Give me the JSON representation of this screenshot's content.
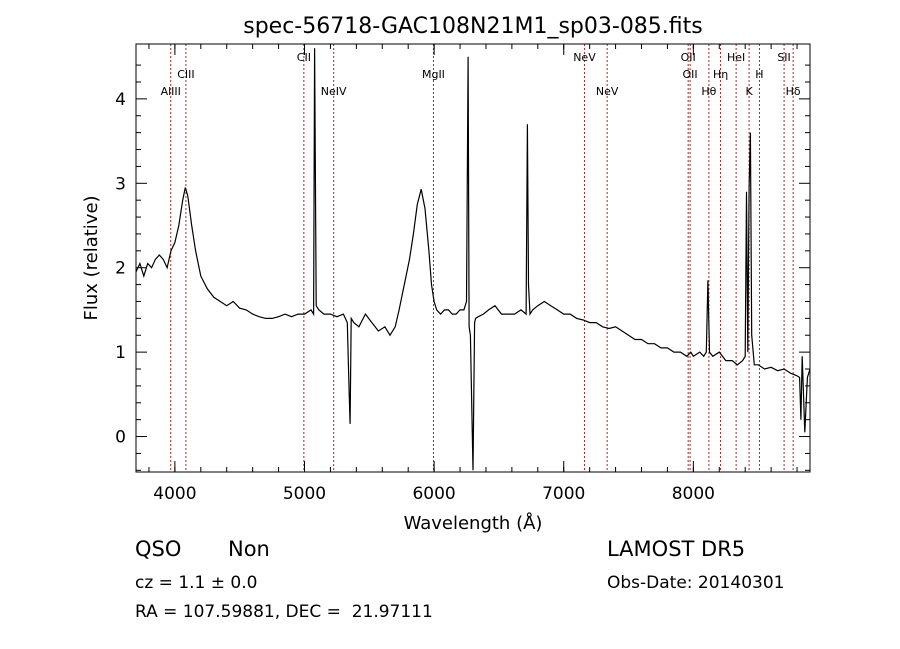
{
  "chart_data": {
    "type": "line",
    "title": "spec-56718-GAC108N21M1_sp03-085.fits",
    "xlabel": "Wavelength (Å)",
    "ylabel": "Flux (relative)",
    "xlim": [
      3700,
      8900
    ],
    "ylim": [
      -0.42,
      4.65
    ],
    "xticks": [
      4000,
      5000,
      6000,
      7000,
      8000
    ],
    "yticks": [
      0,
      1,
      2,
      3,
      4
    ],
    "grid": false,
    "line_color": "#000000",
    "marker_color": "#b22222",
    "series": [
      {
        "x": [
          3700,
          3730,
          3760,
          3790,
          3820,
          3850,
          3880,
          3910,
          3940,
          3970,
          4000,
          4030,
          4060,
          4080,
          4100,
          4130,
          4160,
          4200,
          4250,
          4300,
          4350,
          4400,
          4450,
          4500,
          4550,
          4600,
          4650,
          4700,
          4750,
          4800,
          4850,
          4900,
          4950,
          5000,
          5030,
          5050,
          5070,
          5078,
          5090,
          5110,
          5150,
          5200,
          5250,
          5300,
          5330,
          5345,
          5352,
          5360,
          5380,
          5420,
          5470,
          5520,
          5570,
          5620,
          5660,
          5700,
          5730,
          5770,
          5810,
          5840,
          5870,
          5900,
          5930,
          5960,
          5980,
          6000,
          6020,
          6050,
          6080,
          6110,
          6140,
          6170,
          6200,
          6230,
          6250,
          6262,
          6270,
          6280,
          6300,
          6312,
          6320,
          6340,
          6380,
          6420,
          6470,
          6520,
          6570,
          6620,
          6670,
          6710,
          6720,
          6728,
          6740,
          6760,
          6800,
          6850,
          6900,
          6950,
          7000,
          7050,
          7100,
          7150,
          7200,
          7250,
          7300,
          7350,
          7400,
          7450,
          7500,
          7550,
          7600,
          7650,
          7700,
          7750,
          7800,
          7850,
          7900,
          7950,
          7980,
          8000,
          8050,
          8080,
          8100,
          8112,
          8125,
          8150,
          8200,
          8250,
          8300,
          8340,
          8380,
          8400,
          8410,
          8420,
          8430,
          8440,
          8450,
          8470,
          8500,
          8550,
          8600,
          8650,
          8700,
          8750,
          8800,
          8820,
          8830,
          8840,
          8860,
          8880,
          8900
        ],
        "y": [
          1.95,
          2.05,
          1.9,
          2.05,
          2.0,
          2.1,
          2.15,
          2.1,
          2.0,
          2.2,
          2.3,
          2.5,
          2.8,
          2.95,
          2.85,
          2.5,
          2.2,
          1.9,
          1.75,
          1.65,
          1.6,
          1.55,
          1.6,
          1.52,
          1.5,
          1.45,
          1.42,
          1.4,
          1.4,
          1.42,
          1.45,
          1.42,
          1.45,
          1.45,
          1.48,
          1.5,
          1.45,
          4.6,
          1.55,
          1.5,
          1.45,
          1.45,
          1.42,
          1.45,
          1.35,
          0.5,
          0.15,
          1.4,
          1.35,
          1.3,
          1.45,
          1.35,
          1.25,
          1.3,
          1.2,
          1.3,
          1.5,
          1.8,
          2.1,
          2.4,
          2.75,
          2.93,
          2.7,
          2.2,
          1.8,
          1.6,
          1.5,
          1.45,
          1.5,
          1.5,
          1.45,
          1.45,
          1.5,
          1.5,
          1.6,
          4.5,
          1.3,
          1.2,
          -0.4,
          1.35,
          1.4,
          1.42,
          1.45,
          1.5,
          1.55,
          1.45,
          1.45,
          1.45,
          1.5,
          1.45,
          3.7,
          1.8,
          1.45,
          1.5,
          1.55,
          1.6,
          1.55,
          1.5,
          1.45,
          1.45,
          1.4,
          1.38,
          1.35,
          1.35,
          1.3,
          1.28,
          1.3,
          1.25,
          1.2,
          1.15,
          1.15,
          1.1,
          1.1,
          1.05,
          1.05,
          1.0,
          1.0,
          0.95,
          1.0,
          0.95,
          1.0,
          0.95,
          1.0,
          1.85,
          1.0,
          0.95,
          1.0,
          0.9,
          0.9,
          0.85,
          0.9,
          0.95,
          2.9,
          1.0,
          2.95,
          3.6,
          1.2,
          0.85,
          0.85,
          0.8,
          0.82,
          0.78,
          0.8,
          0.75,
          0.72,
          0.7,
          0.2,
          0.95,
          0.05,
          0.7,
          0.8
        ]
      }
    ],
    "lines": [
      {
        "wl": 3968,
        "label": "AlIII",
        "row": 3
      },
      {
        "wl": 4085,
        "label": "CIII",
        "row": 2
      },
      {
        "wl": 4995,
        "label": "CII",
        "row": 1
      },
      {
        "wl": 5225,
        "label": "NeIV",
        "row": 3
      },
      {
        "wl": 5995,
        "label": "MgII",
        "row": 2
      },
      {
        "wl": 7160,
        "label": "NeV",
        "row": 1
      },
      {
        "wl": 7335,
        "label": "NeV",
        "row": 3
      },
      {
        "wl": 7960,
        "label": "OII",
        "row": 1
      },
      {
        "wl": 7975,
        "label": "OII",
        "row": 2
      },
      {
        "wl": 8120,
        "label": "Hθ",
        "row": 3
      },
      {
        "wl": 8210,
        "label": "Hη",
        "row": 2
      },
      {
        "wl": 8330,
        "label": "HeI",
        "row": 1
      },
      {
        "wl": 8430,
        "label": "K",
        "row": 3
      },
      {
        "wl": 8510,
        "label": "H",
        "row": 2
      },
      {
        "wl": 8700,
        "label": "SII",
        "row": 1
      },
      {
        "wl": 8770,
        "label": "Hδ",
        "row": 3
      }
    ]
  },
  "info": {
    "class": "QSO",
    "subclass": "Non",
    "cz": "cz = 1.1 ± 0.0",
    "coords": "RA = 107.59881, DEC =  21.97111",
    "survey": "LAMOST DR5",
    "obs_date": "Obs-Date: 20140301"
  }
}
